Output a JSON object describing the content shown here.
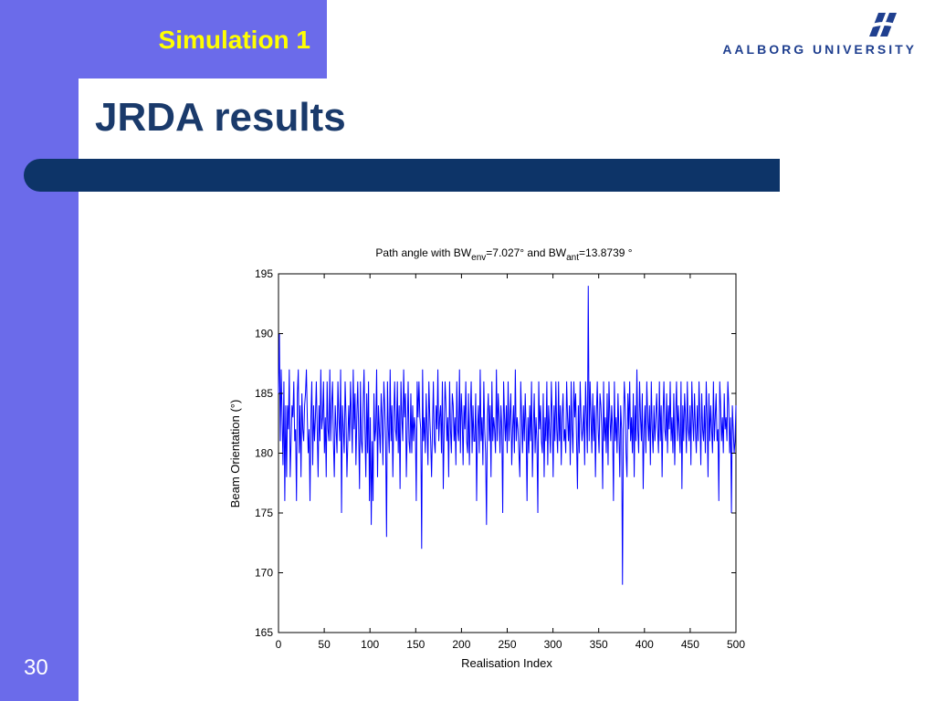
{
  "slide": {
    "section_title": "Simulation 1",
    "title": "JRDA results",
    "page_number": "30"
  },
  "logo": {
    "text_part1": "AALBORG",
    "text_part2": "UNIVERSITY",
    "icon": "aalborg-university-logo"
  },
  "colors": {
    "sidebar": "#6b6bea",
    "title_rule": "#0d3468",
    "title_text": "#1a3a6b",
    "section_title": "#ffff00",
    "series_line": "#0000ff"
  },
  "chart_data": {
    "type": "line",
    "title_main": "Path angle with BW",
    "title_sub1": "env",
    "title_mid": "=7.027° and BW",
    "title_sub2": "ant",
    "title_end": "=13.8739 °",
    "xlabel": "Realisation Index",
    "ylabel": "Beam Orientation  (°)",
    "xlim": [
      0,
      500
    ],
    "ylim": [
      165,
      195
    ],
    "xticks": [
      0,
      50,
      100,
      150,
      200,
      250,
      300,
      350,
      400,
      450,
      500
    ],
    "yticks": [
      165,
      170,
      175,
      180,
      185,
      190,
      195
    ],
    "grid": false,
    "series": [
      {
        "values": [
          185,
          190,
          181,
          187,
          183,
          179,
          186,
          176,
          184,
          178,
          184,
          182,
          187,
          178,
          181,
          184,
          183,
          186,
          181,
          182,
          176,
          185,
          187,
          180,
          184,
          178,
          185,
          182,
          181,
          184,
          185,
          187,
          183,
          180,
          182,
          176,
          183,
          186,
          179,
          184,
          181,
          183,
          186,
          182,
          178,
          184,
          181,
          187,
          182,
          183,
          186,
          180,
          183,
          178,
          186,
          182,
          181,
          187,
          181,
          184,
          186,
          181,
          178,
          184,
          182,
          180,
          186,
          183,
          181,
          187,
          175,
          184,
          182,
          180,
          186,
          183,
          178,
          181,
          184,
          181,
          186,
          183,
          180,
          187,
          182,
          185,
          179,
          183,
          186,
          182,
          177,
          186,
          181,
          180,
          184,
          187,
          182,
          178,
          185,
          180,
          186,
          176,
          183,
          174,
          181,
          176,
          185,
          181,
          182,
          187,
          178,
          184,
          182,
          180,
          185,
          183,
          179,
          186,
          184,
          181,
          173,
          186,
          182,
          180,
          187,
          181,
          184,
          178,
          183,
          186,
          182,
          181,
          186,
          180,
          184,
          177,
          186,
          183,
          181,
          187,
          183,
          185,
          178,
          182,
          186,
          181,
          180,
          185,
          180,
          184,
          181,
          183,
          182,
          176,
          186,
          183,
          186,
          183,
          182,
          172,
          187,
          181,
          183,
          180,
          185,
          182,
          179,
          186,
          183,
          181,
          178,
          182,
          186,
          181,
          180,
          184,
          182,
          187,
          181,
          183,
          184,
          180,
          186,
          177,
          182,
          186,
          184,
          181,
          183,
          178,
          186,
          182,
          180,
          185,
          184,
          181,
          183,
          179,
          186,
          182,
          181,
          187,
          180,
          185,
          183,
          179,
          184,
          182,
          186,
          181,
          180,
          185,
          179,
          183,
          186,
          180,
          184,
          181,
          181,
          185,
          176,
          182,
          184,
          180,
          187,
          181,
          183,
          179,
          186,
          182,
          180,
          174,
          183,
          185,
          181,
          184,
          178,
          186,
          181,
          183,
          182,
          180,
          187,
          181,
          185,
          183,
          180,
          184,
          182,
          175,
          186,
          183,
          181,
          184,
          180,
          186,
          181,
          183,
          185,
          179,
          182,
          184,
          180,
          187,
          181,
          183,
          182,
          180,
          178,
          186,
          183,
          180,
          184,
          181,
          185,
          182,
          176,
          183,
          180,
          184,
          181,
          186,
          178,
          182,
          185,
          180,
          183,
          181,
          175,
          186,
          182,
          184,
          181,
          180,
          185,
          178,
          183,
          181,
          186,
          179,
          184,
          182,
          180,
          186,
          183,
          178,
          184,
          181,
          186,
          182,
          180,
          186,
          181,
          184,
          179,
          183,
          185,
          181,
          182,
          180,
          186,
          183,
          181,
          184,
          179,
          186,
          182,
          180,
          186,
          183,
          185,
          181,
          177,
          184,
          180,
          186,
          183,
          181,
          182,
          184,
          179,
          186,
          183,
          180,
          194,
          181,
          186,
          183,
          180,
          185,
          181,
          184,
          178,
          183,
          186,
          182,
          180,
          185,
          184,
          182,
          177,
          186,
          181,
          183,
          180,
          185,
          179,
          186,
          183,
          181,
          184,
          182,
          176,
          186,
          181,
          183,
          180,
          185,
          182,
          178,
          184,
          182,
          169,
          182,
          186,
          184,
          180,
          178,
          185,
          182,
          186,
          181,
          183,
          180,
          185,
          178,
          184,
          181,
          187,
          182,
          180,
          186,
          183,
          181,
          185,
          177,
          182,
          184,
          180,
          186,
          183,
          181,
          184,
          179,
          186,
          182,
          180,
          184,
          181,
          183,
          185,
          182,
          180,
          186,
          181,
          184,
          178,
          183,
          186,
          182,
          181,
          185,
          180,
          184,
          182,
          186,
          181,
          183,
          180,
          185,
          179,
          183,
          186,
          181,
          184,
          182,
          180,
          186,
          177,
          184,
          181,
          185,
          183,
          180,
          186,
          182,
          181,
          184,
          179,
          186,
          183,
          181,
          185,
          182,
          180,
          184,
          181,
          186,
          183,
          179,
          185,
          182,
          181,
          184,
          180,
          186,
          183,
          178,
          185,
          181,
          184,
          182,
          180,
          186,
          181,
          183,
          185,
          181,
          182,
          176,
          186,
          184,
          181,
          183,
          180,
          185,
          182,
          183,
          181,
          186,
          184,
          180,
          183,
          175,
          184,
          182,
          180,
          181,
          184
        ]
      }
    ]
  }
}
